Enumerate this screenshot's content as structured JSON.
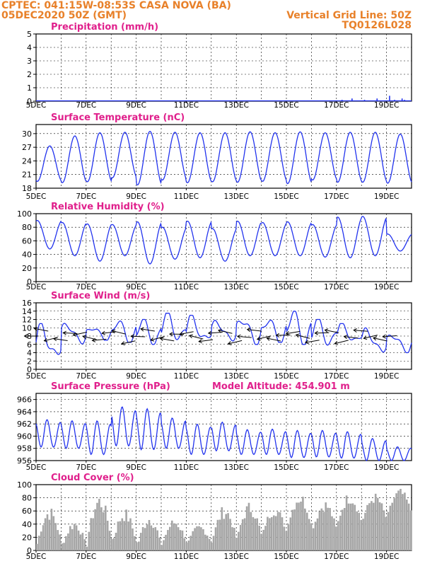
{
  "header": {
    "line1": "CPTEC:   041:15W-08:53S   CASA NOVA (BA)",
    "line2": "05DEC2020 50Z (GMT)",
    "vgrid": "Vertical Grid Line: 50Z",
    "code": "TQ0126L028"
  },
  "colors": {
    "header": "#e8812a",
    "title": "#e0208c",
    "series": "#2233ee",
    "bars": "#a6a6a6",
    "wind": "#000000"
  },
  "x_ticks": [
    "5DEC",
    "7DEC",
    "9DEC",
    "11DEC",
    "13DEC",
    "15DEC",
    "17DEC",
    "19DEC"
  ],
  "chart_data": [
    {
      "id": "precip",
      "type": "bar",
      "title": "Precipitation (mm/h)",
      "x_unit": "days since 5DEC",
      "ylim": [
        0,
        5
      ],
      "yticks": [
        0,
        1,
        2,
        3,
        4,
        5
      ],
      "x": [
        12.2,
        12.6,
        13.1,
        13.6,
        14.1,
        14.3,
        14.6,
        14.7
      ],
      "values": [
        0.1,
        0.2,
        0.1,
        0.2,
        0.4,
        0.1,
        0.2,
        0.1
      ]
    },
    {
      "id": "temp",
      "type": "line",
      "title": "Surface Temperature (nC)",
      "ylim": [
        18,
        32
      ],
      "yticks": [
        18,
        21,
        24,
        27,
        30
      ],
      "daily_max": [
        27.3,
        29.5,
        30.2,
        30.3,
        30.5,
        30.3,
        30.2,
        30.2,
        30.4,
        30.2,
        30.4,
        30.2,
        30.3,
        30.3,
        29.9,
        28.5
      ],
      "daily_min": [
        19.5,
        19.2,
        19.4,
        20.3,
        18.7,
        19.8,
        19.2,
        19.4,
        19.3,
        19.5,
        19.0,
        19.8,
        19.3,
        19.3,
        19.1,
        23.0
      ],
      "end_value": 27.8
    },
    {
      "id": "rh",
      "type": "line",
      "title": "Relative Humidity (%)",
      "ylim": [
        0,
        100
      ],
      "yticks": [
        0,
        20,
        40,
        60,
        80,
        100
      ],
      "daily_max": [
        90,
        87,
        85,
        84,
        88,
        80,
        89,
        78,
        89,
        87,
        88,
        84,
        95,
        96,
        70,
        60
      ],
      "daily_min": [
        48,
        38,
        30,
        38,
        26,
        33,
        35,
        30,
        38,
        38,
        38,
        36,
        35,
        38,
        45,
        45
      ],
      "end_value": 55
    },
    {
      "id": "wind",
      "type": "line",
      "title": "Surface Wind (m/s)",
      "ylim": [
        0,
        16
      ],
      "yticks": [
        0,
        2,
        4,
        6,
        8,
        10,
        12,
        14,
        16
      ],
      "daily_max": [
        11,
        11.5,
        10.5,
        12,
        12,
        13.5,
        13,
        12,
        13,
        12.5,
        14,
        12,
        11,
        10,
        9
      ],
      "daily_min": [
        2,
        6,
        7,
        6.5,
        6,
        6.5,
        6,
        6.5,
        6,
        6.5,
        6,
        5.5,
        6,
        3.5,
        4
      ],
      "arrow_count": 38
    },
    {
      "id": "pressure",
      "type": "line",
      "title": "Surface Pressure (hPa)",
      "annotation": "Model Altitude: 454.901 m",
      "ylim": [
        956,
        967
      ],
      "yticks": [
        956,
        958,
        960,
        962,
        964,
        966
      ],
      "daily_max": [
        963.2,
        963.0,
        963.1,
        965.5,
        965.2,
        963.5,
        962.5,
        962.8,
        961.5,
        961.6,
        961.4,
        961.4,
        961.2,
        960.0,
        958.5
      ],
      "daily_min": [
        958.2,
        958.0,
        957.0,
        958.4,
        957.8,
        958.0,
        957.0,
        957.6,
        957.0,
        957.0,
        956.5,
        956.6,
        956.4,
        956.0,
        956.0
      ]
    },
    {
      "id": "cloud",
      "type": "bar",
      "title": "Cloud Cover (%)",
      "ylim": [
        0,
        100
      ],
      "yticks": [
        0,
        20,
        40,
        60,
        80,
        100
      ],
      "daily_profile": [
        {
          "day": 0,
          "min": 10,
          "max": 68
        },
        {
          "day": 1,
          "min": 5,
          "max": 48
        },
        {
          "day": 2,
          "min": 15,
          "max": 88
        },
        {
          "day": 3,
          "min": 10,
          "max": 65
        },
        {
          "day": 4,
          "min": 5,
          "max": 58
        },
        {
          "day": 5,
          "min": 10,
          "max": 50
        },
        {
          "day": 6,
          "min": 10,
          "max": 40
        },
        {
          "day": 7,
          "min": 15,
          "max": 70
        },
        {
          "day": 8,
          "min": 20,
          "max": 75
        },
        {
          "day": 9,
          "min": 25,
          "max": 70
        },
        {
          "day": 10,
          "min": 35,
          "max": 90
        },
        {
          "day": 11,
          "min": 30,
          "max": 78
        },
        {
          "day": 12,
          "min": 40,
          "max": 90
        },
        {
          "day": 13,
          "min": 45,
          "max": 88
        },
        {
          "day": 14,
          "min": 55,
          "max": 95
        },
        {
          "day": 15,
          "min": 75,
          "max": 95
        }
      ]
    }
  ]
}
